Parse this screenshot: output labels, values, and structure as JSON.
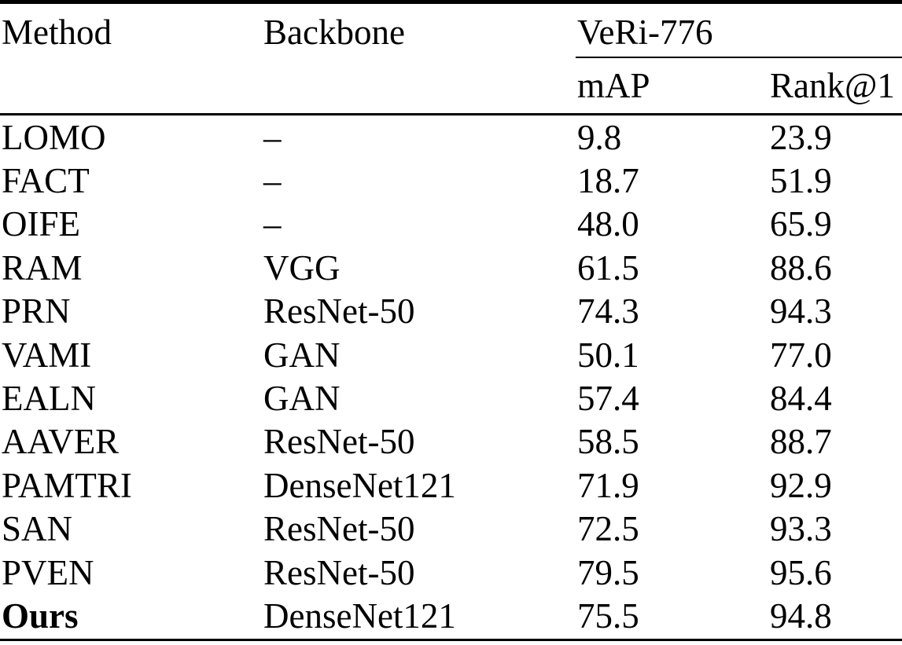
{
  "table": {
    "col_method": "Method",
    "col_backbone": "Backbone",
    "group_header": "VeRi-776",
    "sub_col_map": "mAP",
    "sub_col_rank1": "Rank@1",
    "rows": [
      {
        "method": "LOMO",
        "backbone": "–",
        "map": "9.8",
        "rank1": "23.9",
        "bold": false
      },
      {
        "method": "FACT",
        "backbone": "–",
        "map": "18.7",
        "rank1": "51.9",
        "bold": false
      },
      {
        "method": "OIFE",
        "backbone": "–",
        "map": "48.0",
        "rank1": "65.9",
        "bold": false
      },
      {
        "method": "RAM",
        "backbone": "VGG",
        "map": "61.5",
        "rank1": "88.6",
        "bold": false
      },
      {
        "method": "PRN",
        "backbone": "ResNet-50",
        "map": "74.3",
        "rank1": "94.3",
        "bold": false
      },
      {
        "method": "VAMI",
        "backbone": "GAN",
        "map": "50.1",
        "rank1": "77.0",
        "bold": false
      },
      {
        "method": "EALN",
        "backbone": "GAN",
        "map": "57.4",
        "rank1": "84.4",
        "bold": false
      },
      {
        "method": "AAVER",
        "backbone": "ResNet-50",
        "map": "58.5",
        "rank1": "88.7",
        "bold": false
      },
      {
        "method": "PAMTRI",
        "backbone": "DenseNet121",
        "map": "71.9",
        "rank1": "92.9",
        "bold": false
      },
      {
        "method": "SAN",
        "backbone": "ResNet-50",
        "map": "72.5",
        "rank1": "93.3",
        "bold": false
      },
      {
        "method": "PVEN",
        "backbone": "ResNet-50",
        "map": "79.5",
        "rank1": "95.6",
        "bold": false
      },
      {
        "method": "Ours",
        "backbone": "DenseNet121",
        "map": "75.5",
        "rank1": "94.8",
        "bold": true
      }
    ],
    "colors": {
      "text": "#000000",
      "background": "#ffffff",
      "rule": "#000000"
    }
  }
}
